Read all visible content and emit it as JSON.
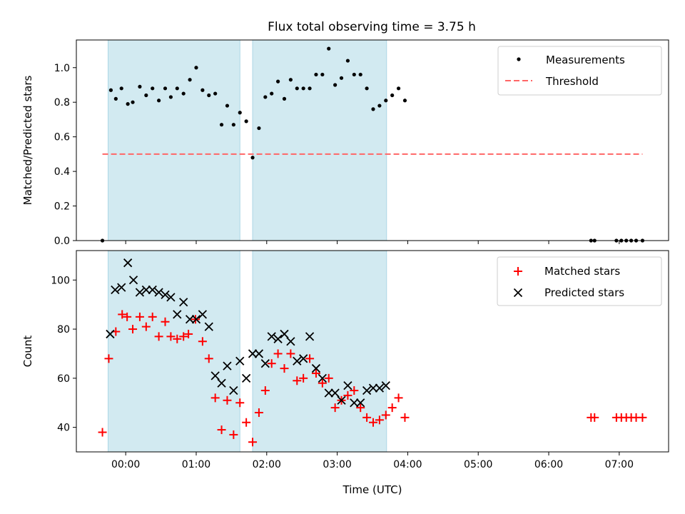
{
  "title": "Flux total observing time = 3.75 h",
  "colors": {
    "shade": "#add8e6",
    "threshold": "#ff6666",
    "matched": "#ff0000",
    "predicted": "#000000",
    "measure": "#000000"
  },
  "chart_data": [
    {
      "type": "scatter",
      "ylabel": "Matched/Predicted stars",
      "ylim": [
        0,
        1.16
      ],
      "yticks": [
        0.0,
        0.2,
        0.4,
        0.6,
        0.8,
        1.0
      ],
      "ytick_labels": [
        "0.0",
        "0.2",
        "0.4",
        "0.6",
        "0.8",
        "1.0"
      ],
      "legend_position": "top-right",
      "shaded_intervals_hours": [
        [
          -0.25,
          1.62
        ],
        [
          1.8,
          3.7
        ]
      ],
      "series": [
        {
          "name": "Measurements",
          "kind": "points",
          "x": [
            -0.33,
            -0.21,
            -0.14,
            -0.06,
            0.03,
            0.1,
            0.2,
            0.29,
            0.38,
            0.47,
            0.56,
            0.64,
            0.73,
            0.82,
            0.91,
            1.0,
            1.09,
            1.18,
            1.27,
            1.36,
            1.44,
            1.53,
            1.62,
            1.71,
            1.8,
            1.89,
            1.98,
            2.07,
            2.16,
            2.25,
            2.34,
            2.43,
            2.52,
            2.61,
            2.7,
            2.79,
            2.88,
            2.97,
            3.06,
            3.15,
            3.24,
            3.33,
            3.42,
            3.51,
            3.6,
            3.69,
            3.78,
            3.87,
            3.96,
            6.6,
            6.65,
            6.96,
            7.03,
            7.1,
            7.17,
            7.24,
            7.33
          ],
          "y": [
            0.0,
            0.87,
            0.82,
            0.88,
            0.79,
            0.8,
            0.89,
            0.84,
            0.88,
            0.81,
            0.88,
            0.83,
            0.88,
            0.85,
            0.93,
            1.0,
            0.87,
            0.84,
            0.85,
            0.67,
            0.78,
            0.67,
            0.74,
            0.69,
            0.48,
            0.65,
            0.83,
            0.85,
            0.92,
            0.82,
            0.93,
            0.88,
            0.88,
            0.88,
            0.96,
            0.96,
            1.11,
            0.9,
            0.94,
            1.04,
            0.96,
            0.96,
            0.88,
            0.76,
            0.78,
            0.81,
            0.84,
            0.88,
            0.81,
            0.0,
            0.0,
            0.0,
            0.0,
            0.0,
            0.0,
            0.0,
            0.0
          ]
        },
        {
          "name": "Threshold",
          "kind": "dashed-line",
          "x": [
            -0.33,
            7.33
          ],
          "y": [
            0.5,
            0.5
          ]
        }
      ]
    },
    {
      "type": "scatter",
      "xlabel": "Time (UTC)",
      "ylabel": "Count",
      "ylim": [
        30,
        112
      ],
      "yticks": [
        40,
        60,
        80,
        100
      ],
      "ytick_labels": [
        "40",
        "60",
        "80",
        "100"
      ],
      "xlim": [
        -0.7,
        7.7
      ],
      "xticks_hours": [
        0,
        1,
        2,
        3,
        4,
        5,
        6,
        7
      ],
      "xtick_labels": [
        "00:00",
        "01:00",
        "02:00",
        "03:00",
        "04:00",
        "05:00",
        "06:00",
        "07:00"
      ],
      "legend_position": "top-right",
      "series": [
        {
          "name": "Matched stars",
          "marker": "plus",
          "x": [
            -0.33,
            -0.24,
            -0.14,
            -0.05,
            0.02,
            0.1,
            0.2,
            0.29,
            0.38,
            0.47,
            0.56,
            0.64,
            0.73,
            0.82,
            0.89,
            0.99,
            1.09,
            1.18,
            1.27,
            1.36,
            1.44,
            1.53,
            1.62,
            1.71,
            1.8,
            1.89,
            1.98,
            2.07,
            2.16,
            2.25,
            2.34,
            2.43,
            2.52,
            2.61,
            2.7,
            2.79,
            2.88,
            2.97,
            3.06,
            3.15,
            3.24,
            3.33,
            3.42,
            3.51,
            3.6,
            3.69,
            3.78,
            3.87,
            3.96,
            6.6,
            6.65,
            6.96,
            7.03,
            7.1,
            7.17,
            7.24,
            7.33
          ],
          "y": [
            38,
            68,
            79,
            86,
            85,
            80,
            85,
            81,
            85,
            77,
            83,
            77,
            76,
            77,
            78,
            84,
            75,
            68,
            52,
            39,
            51,
            37,
            50,
            42,
            34,
            46,
            55,
            66,
            70,
            64,
            70,
            59,
            60,
            68,
            62,
            58,
            60,
            48,
            51,
            53,
            55,
            48,
            44,
            42,
            43,
            45,
            48,
            52,
            44,
            44,
            44,
            44,
            44,
            44,
            44,
            44,
            44
          ]
        },
        {
          "name": "Predicted stars",
          "marker": "x",
          "x": [
            -0.22,
            -0.15,
            -0.06,
            0.03,
            0.11,
            0.2,
            0.29,
            0.38,
            0.47,
            0.56,
            0.64,
            0.73,
            0.82,
            0.91,
            1.0,
            1.09,
            1.18,
            1.27,
            1.36,
            1.44,
            1.53,
            1.62,
            1.71,
            1.8,
            1.89,
            1.98,
            2.07,
            2.16,
            2.25,
            2.34,
            2.43,
            2.52,
            2.61,
            2.7,
            2.79,
            2.88,
            2.97,
            3.06,
            3.15,
            3.24,
            3.33,
            3.42,
            3.51,
            3.6,
            3.69
          ],
          "y": [
            78,
            96,
            97,
            107,
            100,
            95,
            96,
            96,
            95,
            94,
            93,
            86,
            91,
            84,
            84,
            86,
            81,
            61,
            58,
            65,
            55,
            67,
            60,
            70,
            70,
            66,
            77,
            76,
            78,
            75,
            67,
            68,
            77,
            64,
            60,
            54,
            54,
            51,
            57,
            50,
            50,
            55,
            56,
            56,
            57
          ]
        }
      ]
    }
  ]
}
